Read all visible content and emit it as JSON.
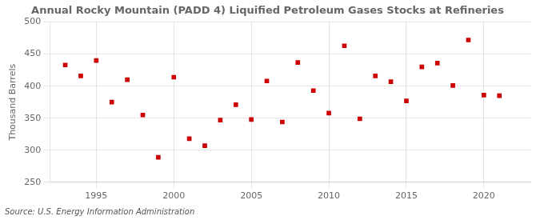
{
  "chart_data": {
    "type": "scatter",
    "title": "Annual Rocky Mountain (PADD 4) Liquified Petroleum Gases Stocks at Refineries",
    "ylabel": "Thousand Barrels",
    "annotation": "Source: U.S. Energy Information Administration",
    "x": [
      1993,
      1994,
      1995,
      1996,
      1997,
      1998,
      1999,
      2000,
      2001,
      2002,
      2003,
      2004,
      2005,
      2006,
      2007,
      2008,
      2009,
      2010,
      2011,
      2012,
      2013,
      2014,
      2015,
      2016,
      2017,
      2018,
      2019,
      2020,
      2021
    ],
    "values": [
      433,
      416,
      440,
      375,
      410,
      355,
      289,
      414,
      318,
      307,
      347,
      371,
      348,
      408,
      344,
      437,
      393,
      358,
      463,
      349,
      416,
      407,
      377,
      430,
      436,
      401,
      472,
      386,
      385
    ],
    "color": "#cc0000",
    "marker": "square",
    "xlim": [
      1992,
      2023
    ],
    "xticks": [
      1995,
      2000,
      2005,
      2010,
      2015,
      2020
    ],
    "ylim": [
      250,
      500
    ],
    "yticks": [
      250,
      300,
      350,
      400,
      450,
      500
    ],
    "grid": true
  }
}
